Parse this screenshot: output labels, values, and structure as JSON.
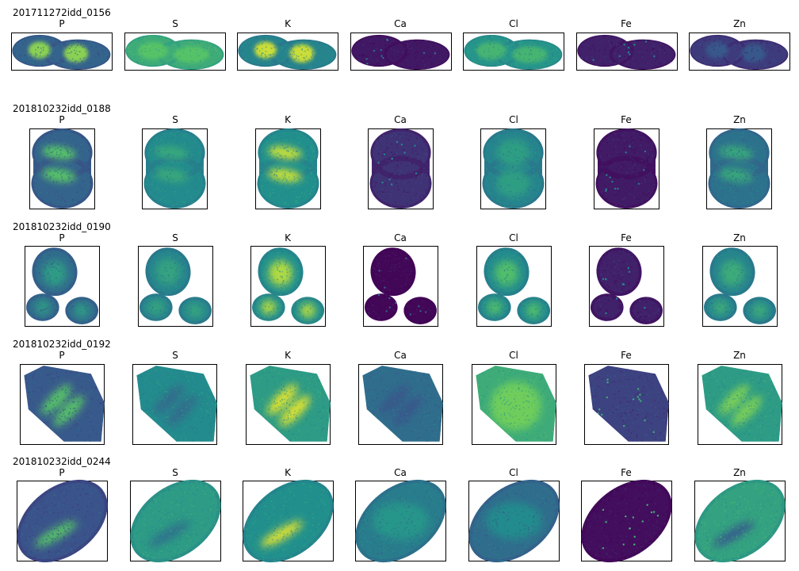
{
  "figure": {
    "elements": [
      "P",
      "S",
      "K",
      "Ca",
      "Cl",
      "Fe",
      "Zn"
    ],
    "colormap": "viridis",
    "colormap_stops": [
      "#440154",
      "#3b528b",
      "#21908d",
      "#5dc963",
      "#fde725"
    ],
    "border_color": "#000000",
    "background": "#ffffff",
    "rows": [
      {
        "sample": "201711272idd_0156",
        "shape": "two-cells-horizontal",
        "levels": [
          {
            "base": 0.32,
            "hot": 0.82,
            "hot_region": "nuclei"
          },
          {
            "base": 0.62,
            "hot": 0.72,
            "hot_region": "diffuse"
          },
          {
            "base": 0.45,
            "hot": 0.92,
            "hot_region": "nuclei"
          },
          {
            "base": 0.07,
            "hot": 0.12,
            "hot_region": "speckle"
          },
          {
            "base": 0.52,
            "hot": 0.66,
            "hot_region": "diffuse"
          },
          {
            "base": 0.1,
            "hot": 0.2,
            "hot_region": "speckle"
          },
          {
            "base": 0.18,
            "hot": 0.28,
            "hot_region": "nuclei"
          }
        ]
      },
      {
        "sample": "201810232idd_0188",
        "shape": "peanut-vertical",
        "levels": [
          {
            "base": 0.32,
            "hot": 0.72,
            "hot_region": "bands"
          },
          {
            "base": 0.48,
            "hot": 0.6,
            "hot_region": "bands"
          },
          {
            "base": 0.5,
            "hot": 0.9,
            "hot_region": "bands"
          },
          {
            "base": 0.15,
            "hot": 0.22,
            "hot_region": "speckle"
          },
          {
            "base": 0.45,
            "hot": 0.56,
            "hot_region": "diffuse"
          },
          {
            "base": 0.08,
            "hot": 0.18,
            "hot_region": "speckle"
          },
          {
            "base": 0.38,
            "hot": 0.6,
            "hot_region": "bands"
          }
        ]
      },
      {
        "sample": "201810232idd_0190",
        "shape": "three-cells",
        "levels": [
          {
            "base": 0.35,
            "hot": 0.55,
            "hot_region": "nuclei"
          },
          {
            "base": 0.45,
            "hot": 0.58,
            "hot_region": "diffuse"
          },
          {
            "base": 0.5,
            "hot": 0.88,
            "hot_region": "nuclei"
          },
          {
            "base": 0.02,
            "hot": 0.05,
            "hot_region": "speckle"
          },
          {
            "base": 0.48,
            "hot": 0.7,
            "hot_region": "nuclei"
          },
          {
            "base": 0.1,
            "hot": 0.22,
            "hot_region": "speckle"
          },
          {
            "base": 0.45,
            "hot": 0.62,
            "hot_region": "nuclei"
          }
        ]
      },
      {
        "sample": "201810232idd_0192",
        "shape": "hexagon-tilted",
        "levels": [
          {
            "base": 0.28,
            "hot": 0.72,
            "hot_region": "bands"
          },
          {
            "base": 0.48,
            "hot": 0.36,
            "hot_region": "bands"
          },
          {
            "base": 0.55,
            "hot": 0.95,
            "hot_region": "bands"
          },
          {
            "base": 0.36,
            "hot": 0.28,
            "hot_region": "bands"
          },
          {
            "base": 0.62,
            "hot": 0.78,
            "hot_region": "diffuse"
          },
          {
            "base": 0.2,
            "hot": 0.38,
            "hot_region": "speckle"
          },
          {
            "base": 0.55,
            "hot": 0.8,
            "hot_region": "bands"
          }
        ]
      },
      {
        "sample": "201810232idd_0244",
        "shape": "oval-tilted",
        "levels": [
          {
            "base": 0.26,
            "hot": 0.72,
            "hot_region": "diagonal"
          },
          {
            "base": 0.55,
            "hot": 0.38,
            "hot_region": "diagonal"
          },
          {
            "base": 0.5,
            "hot": 0.95,
            "hot_region": "diagonal"
          },
          {
            "base": 0.42,
            "hot": 0.52,
            "hot_region": "diffuse"
          },
          {
            "base": 0.36,
            "hot": 0.48,
            "hot_region": "diffuse"
          },
          {
            "base": 0.04,
            "hot": 0.4,
            "hot_region": "speckle"
          },
          {
            "base": 0.58,
            "hot": 0.3,
            "hot_region": "diagonal"
          }
        ]
      }
    ]
  }
}
